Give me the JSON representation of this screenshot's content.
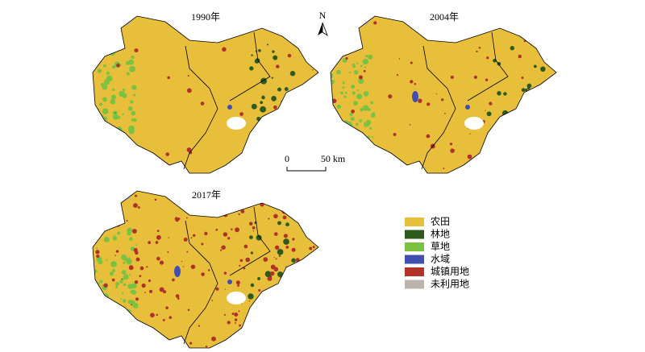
{
  "maps": [
    {
      "title": "1990年"
    },
    {
      "title": "2004年"
    },
    {
      "title": "2017年"
    }
  ],
  "north_arrow": {
    "label": "N"
  },
  "scale_bar": {
    "start": "0",
    "end": "50 km"
  },
  "legend": {
    "items": [
      {
        "label": "农田",
        "color": "#e8bf3a"
      },
      {
        "label": "林地",
        "color": "#2f5a1e"
      },
      {
        "label": "草地",
        "color": "#7cc242"
      },
      {
        "label": "水域",
        "color": "#4150b0"
      },
      {
        "label": "城镇用地",
        "color": "#b03228"
      },
      {
        "label": "未利用地",
        "color": "#bdb3ae"
      }
    ]
  }
}
